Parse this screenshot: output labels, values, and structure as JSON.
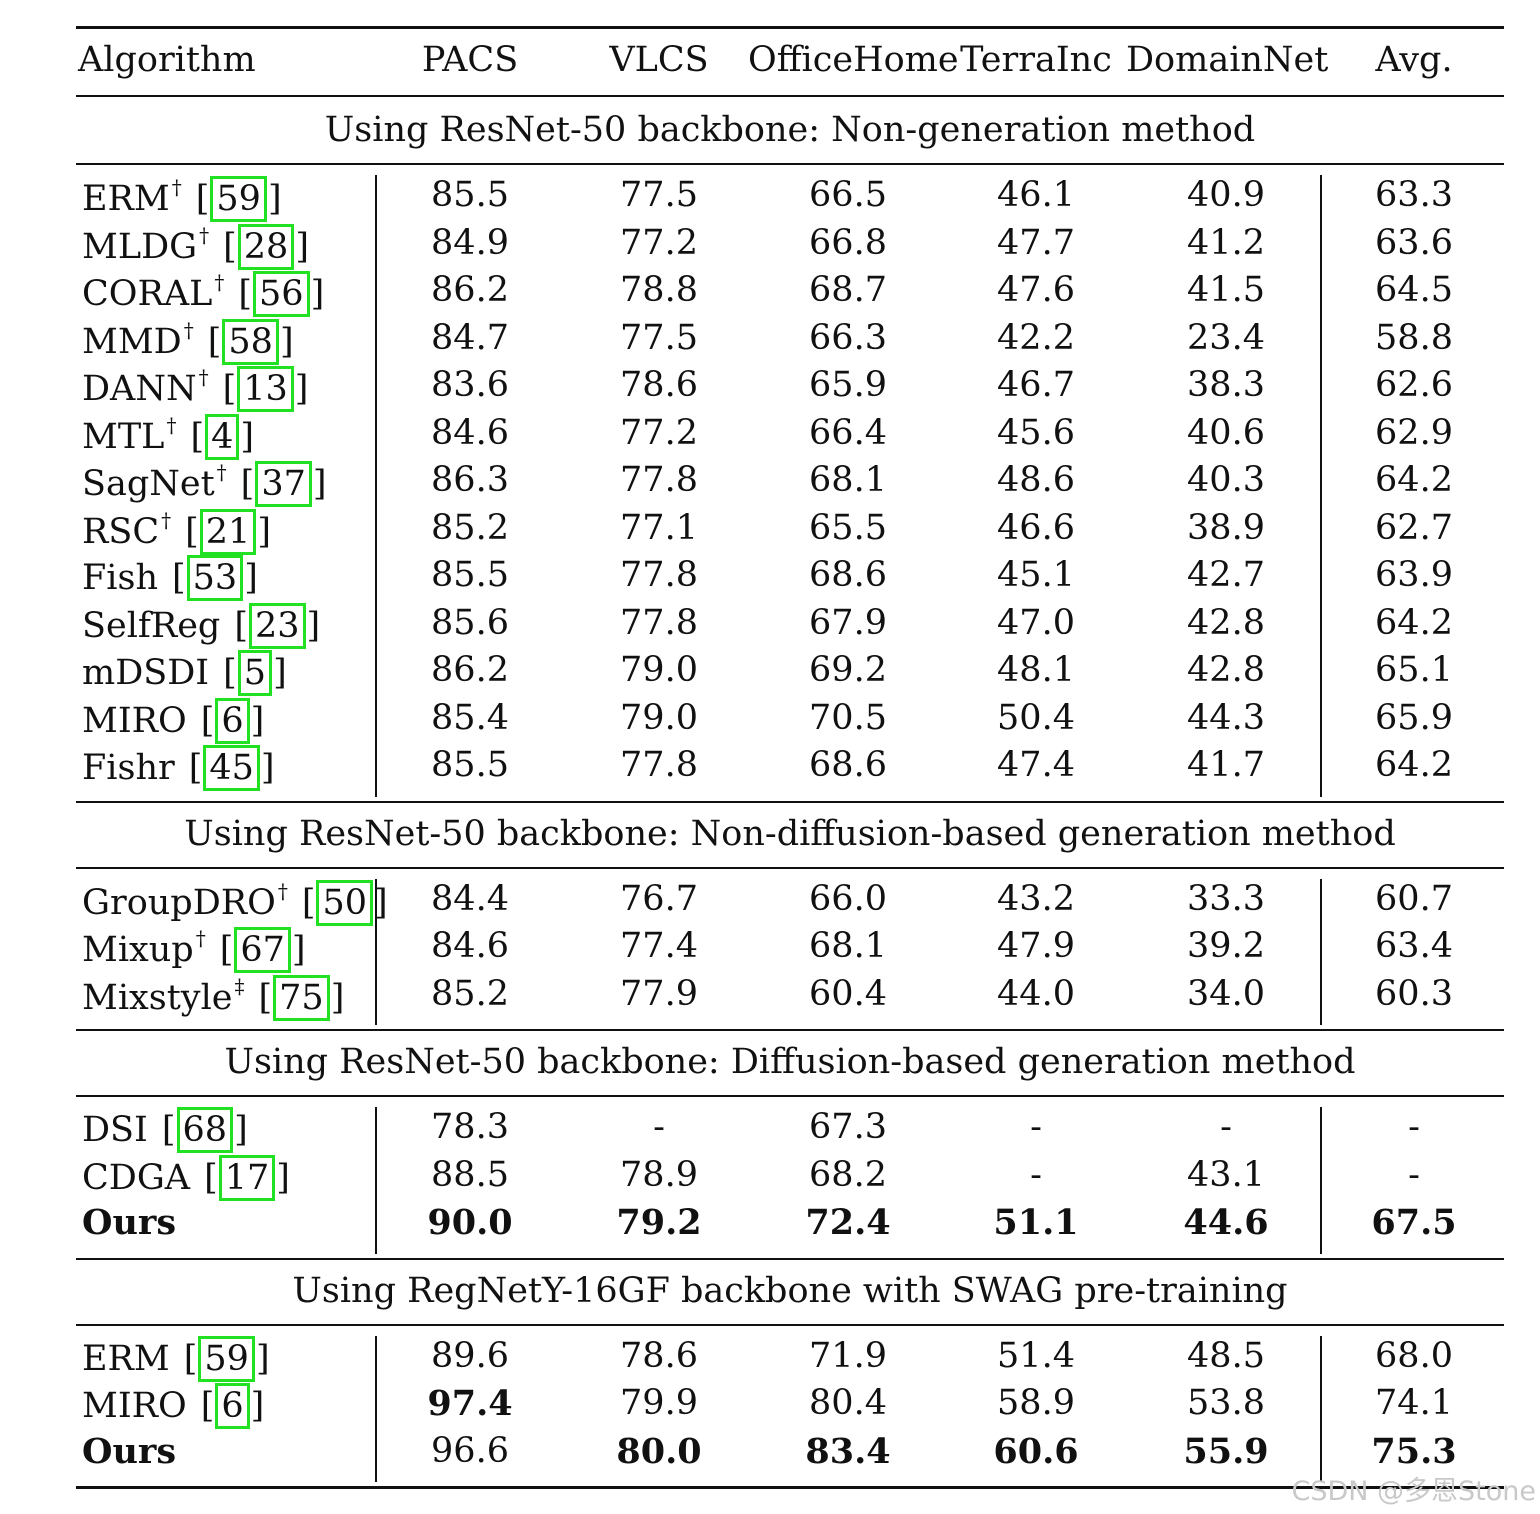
{
  "columns": [
    "Algorithm",
    "PACS",
    "VLCS",
    "OfficeHome",
    "TerraInc",
    "DomainNet",
    "Avg."
  ],
  "sections": [
    {
      "title": "Using ResNet-50 backbone: Non-generation method",
      "rows": [
        {
          "name": "ERM",
          "mark": "†",
          "ref": "59",
          "values": [
            "85.5",
            "77.5",
            "66.5",
            "46.1",
            "40.9",
            "63.3"
          ],
          "bold": []
        },
        {
          "name": "MLDG",
          "mark": "†",
          "ref": "28",
          "values": [
            "84.9",
            "77.2",
            "66.8",
            "47.7",
            "41.2",
            "63.6"
          ],
          "bold": []
        },
        {
          "name": "CORAL",
          "mark": "†",
          "ref": "56",
          "values": [
            "86.2",
            "78.8",
            "68.7",
            "47.6",
            "41.5",
            "64.5"
          ],
          "bold": []
        },
        {
          "name": "MMD",
          "mark": "†",
          "ref": "58",
          "values": [
            "84.7",
            "77.5",
            "66.3",
            "42.2",
            "23.4",
            "58.8"
          ],
          "bold": []
        },
        {
          "name": "DANN",
          "mark": "†",
          "ref": "13",
          "values": [
            "83.6",
            "78.6",
            "65.9",
            "46.7",
            "38.3",
            "62.6"
          ],
          "bold": []
        },
        {
          "name": "MTL",
          "mark": "†",
          "ref": "4",
          "values": [
            "84.6",
            "77.2",
            "66.4",
            "45.6",
            "40.6",
            "62.9"
          ],
          "bold": []
        },
        {
          "name": "SagNet",
          "mark": "†",
          "ref": "37",
          "values": [
            "86.3",
            "77.8",
            "68.1",
            "48.6",
            "40.3",
            "64.2"
          ],
          "bold": []
        },
        {
          "name": "RSC",
          "mark": "†",
          "ref": "21",
          "values": [
            "85.2",
            "77.1",
            "65.5",
            "46.6",
            "38.9",
            "62.7"
          ],
          "bold": []
        },
        {
          "name": "Fish",
          "mark": "",
          "ref": "53",
          "values": [
            "85.5",
            "77.8",
            "68.6",
            "45.1",
            "42.7",
            "63.9"
          ],
          "bold": []
        },
        {
          "name": "SelfReg",
          "mark": "",
          "ref": "23",
          "values": [
            "85.6",
            "77.8",
            "67.9",
            "47.0",
            "42.8",
            "64.2"
          ],
          "bold": []
        },
        {
          "name": "mDSDI",
          "mark": "",
          "ref": "5",
          "values": [
            "86.2",
            "79.0",
            "69.2",
            "48.1",
            "42.8",
            "65.1"
          ],
          "bold": []
        },
        {
          "name": "MIRO",
          "mark": "",
          "ref": "6",
          "values": [
            "85.4",
            "79.0",
            "70.5",
            "50.4",
            "44.3",
            "65.9"
          ],
          "bold": []
        },
        {
          "name": "Fishr",
          "mark": "",
          "ref": "45",
          "values": [
            "85.5",
            "77.8",
            "68.6",
            "47.4",
            "41.7",
            "64.2"
          ],
          "bold": []
        }
      ]
    },
    {
      "title": "Using ResNet-50 backbone: Non-diffusion-based generation method",
      "rows": [
        {
          "name": "GroupDRO",
          "mark": "†",
          "ref": "50",
          "values": [
            "84.4",
            "76.7",
            "66.0",
            "43.2",
            "33.3",
            "60.7"
          ],
          "bold": []
        },
        {
          "name": "Mixup",
          "mark": "†",
          "ref": "67",
          "values": [
            "84.6",
            "77.4",
            "68.1",
            "47.9",
            "39.2",
            "63.4"
          ],
          "bold": []
        },
        {
          "name": "Mixstyle",
          "mark": "‡",
          "ref": "75",
          "values": [
            "85.2",
            "77.9",
            "60.4",
            "44.0",
            "34.0",
            "60.3"
          ],
          "bold": []
        }
      ]
    },
    {
      "title": "Using ResNet-50 backbone: Diffusion-based generation method",
      "rows": [
        {
          "name": "DSI",
          "mark": "",
          "ref": "68",
          "values": [
            "78.3",
            "-",
            "67.3",
            "-",
            "-",
            "-"
          ],
          "bold": []
        },
        {
          "name": "CDGA",
          "mark": "",
          "ref": "17",
          "values": [
            "88.5",
            "78.9",
            "68.2",
            "-",
            "43.1",
            "-"
          ],
          "bold": []
        },
        {
          "name": "Ours",
          "mark": "",
          "ref": "",
          "values": [
            "90.0",
            "79.2",
            "72.4",
            "51.1",
            "44.6",
            "67.5"
          ],
          "bold": [
            "name",
            0,
            1,
            2,
            3,
            4,
            5
          ]
        }
      ]
    },
    {
      "title": "Using RegNetY-16GF backbone with SWAG pre-training",
      "rows": [
        {
          "name": "ERM",
          "mark": "",
          "ref": "59",
          "values": [
            "89.6",
            "78.6",
            "71.9",
            "51.4",
            "48.5",
            "68.0"
          ],
          "bold": []
        },
        {
          "name": "MIRO",
          "mark": "",
          "ref": "6",
          "values": [
            "97.4",
            "79.9",
            "80.4",
            "58.9",
            "53.8",
            "74.1"
          ],
          "bold": [
            0
          ]
        },
        {
          "name": "Ours",
          "mark": "",
          "ref": "",
          "values": [
            "96.6",
            "80.0",
            "83.4",
            "60.6",
            "55.9",
            "75.3"
          ],
          "bold": [
            "name",
            1,
            2,
            3,
            4,
            5
          ]
        }
      ]
    }
  ],
  "watermark": "CSDN @多恩Stone",
  "colors": {
    "ref_box": "#22e022",
    "text": "#111111",
    "watermark": "#c9c9c9"
  }
}
